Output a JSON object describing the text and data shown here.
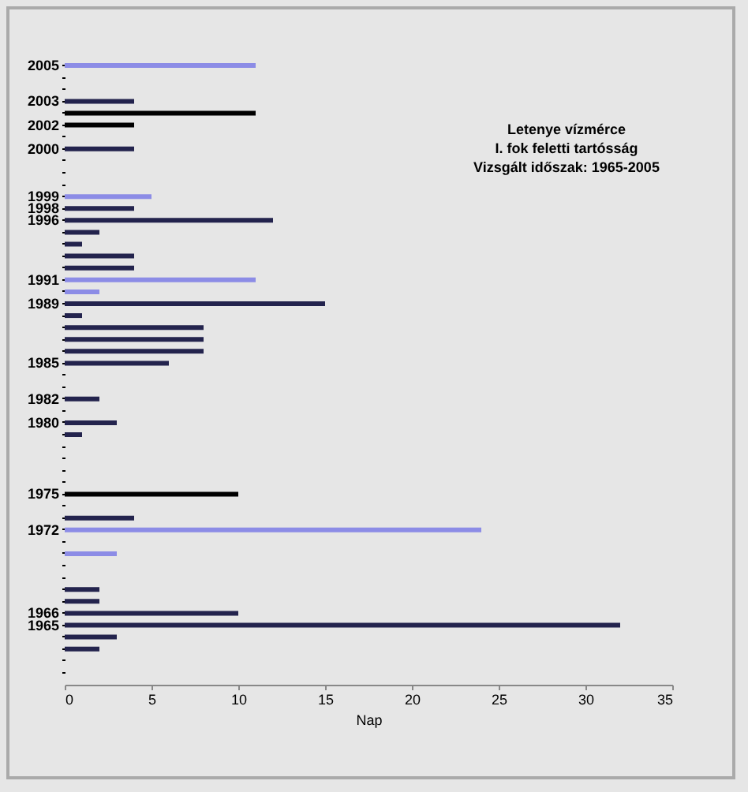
{
  "chart_data": {
    "type": "bar",
    "orientation": "horizontal",
    "title": "Letenye vízmérce",
    "subtitle": "I. fok feletti tartósság",
    "annotations": [
      "Vizsgált időszak: 1965-2005"
    ],
    "xlabel": "Nap",
    "categories": [
      "2005",
      null,
      null,
      "2003",
      null,
      "2002",
      null,
      "2000",
      null,
      null,
      null,
      "1999",
      "1998",
      "1996",
      null,
      null,
      null,
      null,
      "1991",
      null,
      "1989",
      null,
      null,
      null,
      null,
      "1985",
      null,
      null,
      "1982",
      null,
      "1980",
      null,
      null,
      null,
      null,
      null,
      "1975",
      null,
      null,
      "1972",
      null,
      null,
      null,
      null,
      null,
      null,
      "1966",
      "1965",
      null,
      null,
      null,
      null
    ],
    "values": [
      11,
      null,
      null,
      4,
      11,
      4,
      null,
      4,
      null,
      null,
      null,
      5,
      4,
      12,
      2,
      1,
      4,
      4,
      11,
      2,
      15,
      1,
      8,
      8,
      8,
      6,
      null,
      null,
      2,
      null,
      3,
      1,
      null,
      null,
      null,
      null,
      10,
      null,
      4,
      24,
      null,
      3,
      null,
      null,
      2,
      2,
      10,
      32,
      3,
      2,
      null,
      null
    ],
    "colors": [
      "#8c8ce6",
      null,
      null,
      "#23234d",
      "#000000",
      "#000000",
      null,
      "#23234d",
      null,
      null,
      null,
      "#8c8ce6",
      "#23234d",
      "#23234d",
      "#23234d",
      "#23234d",
      "#23234d",
      "#23234d",
      "#8c8ce6",
      "#8c8ce6",
      "#23234d",
      "#23234d",
      "#23234d",
      "#23234d",
      "#23234d",
      "#23234d",
      null,
      null,
      "#23234d",
      null,
      "#23234d",
      "#23234d",
      null,
      null,
      null,
      null,
      "#000000",
      null,
      "#23234d",
      "#8c8ce6",
      null,
      "#8c8ce6",
      null,
      null,
      "#23234d",
      "#23234d",
      "#23234d",
      "#23234d",
      "#23234d",
      "#23234d",
      null,
      null
    ],
    "xlim": [
      0,
      35
    ],
    "xticks": [
      0,
      5,
      10,
      15,
      20,
      25,
      30,
      35
    ]
  }
}
